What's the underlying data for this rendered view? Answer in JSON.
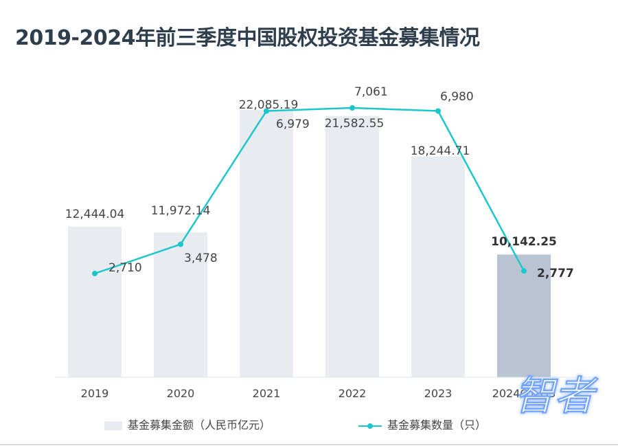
{
  "title": "2019-2024年前三季度中国股权投资基金募集情况",
  "chart_data": {
    "type": "bar",
    "categories": [
      "2019",
      "2020",
      "2021",
      "2022",
      "2023",
      "2024Q1-Q3"
    ],
    "series": [
      {
        "name": "基金募集金额（人民币亿元）",
        "type": "bar",
        "values": [
          12444.04,
          11972.14,
          22085.19,
          21582.55,
          18244.71,
          10142.25
        ],
        "labels": [
          "12,444.04",
          "11,972.14",
          "22,085.19",
          "21,582.55",
          "18,244.71",
          "10,142.25"
        ]
      },
      {
        "name": "基金募集数量（只）",
        "type": "line",
        "values": [
          2710,
          3478,
          6979,
          7061,
          6980,
          2777
        ],
        "labels": [
          "2,710",
          "3,478",
          "6,979",
          "7,061",
          "6,980",
          "2,777"
        ]
      }
    ],
    "highlight_index": 5,
    "colors": {
      "bar": "#e8ebf0",
      "bar_highlight": "#b9c4d3",
      "line": "#1cc7cc",
      "text": "#444444",
      "title": "#2f3e4d"
    },
    "legend_position": "bottom",
    "grid": false
  },
  "legend": {
    "bar_label": "基金募集金额（人民币亿元）",
    "line_label": "基金募集数量（只）"
  },
  "watermark_text": "智者"
}
